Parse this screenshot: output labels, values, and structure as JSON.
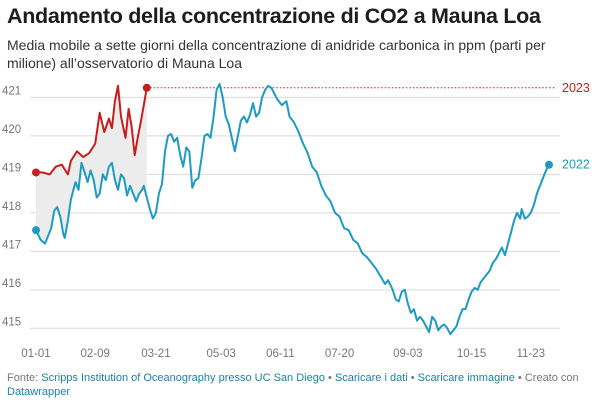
{
  "title": "Andamento della concentrazione di CO2 a Mauna Loa",
  "subtitle": "Media mobile a sette giorni della concentrazione di anidride carbonica in ppm (parti per milione) all’osservatorio di Mauna Loa",
  "footer": {
    "prefix": "Fonte: ",
    "source": "Scripps Institution of Oceanography presso UC San Diego",
    "sep1": " • ",
    "download_data": "Scaricare i dati",
    "sep2": " • ",
    "download_image": "Scaricare immagine",
    "sep3": " • Creato con ",
    "tool": "Datawrapper"
  },
  "colors": {
    "series_2023": "#c71e1d",
    "series_2022": "#1d9bc0",
    "area_fill": "#ececec",
    "grid": "#d9d9d9"
  },
  "chart_data": {
    "type": "line",
    "x_unit": "day of year (1 = 1 Jan)",
    "ylim": [
      414.8,
      421.4
    ],
    "y_ticks": [
      415,
      416,
      417,
      418,
      419,
      420,
      421
    ],
    "x_ticks": [
      {
        "day": 1,
        "label": "01-01"
      },
      {
        "day": 40,
        "label": "02-09"
      },
      {
        "day": 80,
        "label": "03-21"
      },
      {
        "day": 123,
        "label": "05-03"
      },
      {
        "day": 162,
        "label": "06-11"
      },
      {
        "day": 201,
        "label": "07-20"
      },
      {
        "day": 246,
        "label": "09-03"
      },
      {
        "day": 288,
        "label": "10-15"
      },
      {
        "day": 327,
        "label": "11-23"
      }
    ],
    "grid": true,
    "series": [
      {
        "name": "2023",
        "color": "#c71e1d",
        "reference_line": 421.25,
        "points": [
          [
            1,
            419.05
          ],
          [
            5,
            419.05
          ],
          [
            10,
            419.0
          ],
          [
            14,
            419.2
          ],
          [
            18,
            419.25
          ],
          [
            22,
            419.0
          ],
          [
            24,
            419.35
          ],
          [
            28,
            419.6
          ],
          [
            32,
            419.45
          ],
          [
            36,
            419.55
          ],
          [
            40,
            419.8
          ],
          [
            43,
            420.6
          ],
          [
            46,
            420.1
          ],
          [
            49,
            420.45
          ],
          [
            51,
            420.2
          ],
          [
            53,
            420.9
          ],
          [
            55,
            421.3
          ],
          [
            57,
            420.5
          ],
          [
            60,
            419.95
          ],
          [
            62,
            420.7
          ],
          [
            64,
            420.25
          ],
          [
            66,
            419.5
          ],
          [
            68,
            419.95
          ],
          [
            70,
            420.35
          ],
          [
            72,
            420.8
          ],
          [
            74,
            421.25
          ]
        ]
      },
      {
        "name": "2022",
        "color": "#1d9bc0",
        "points": [
          [
            1,
            417.55
          ],
          [
            4,
            417.3
          ],
          [
            7,
            417.2
          ],
          [
            9,
            417.4
          ],
          [
            11,
            417.6
          ],
          [
            13,
            418.05
          ],
          [
            15,
            418.15
          ],
          [
            17,
            417.9
          ],
          [
            19,
            417.45
          ],
          [
            20,
            417.35
          ],
          [
            22,
            417.8
          ],
          [
            24,
            418.35
          ],
          [
            27,
            418.8
          ],
          [
            29,
            418.6
          ],
          [
            31,
            419.3
          ],
          [
            33,
            419.05
          ],
          [
            35,
            418.8
          ],
          [
            37,
            419.1
          ],
          [
            39,
            418.85
          ],
          [
            41,
            418.4
          ],
          [
            43,
            418.5
          ],
          [
            45,
            419.0
          ],
          [
            47,
            418.85
          ],
          [
            49,
            419.2
          ],
          [
            51,
            419.3
          ],
          [
            53,
            418.85
          ],
          [
            55,
            418.6
          ],
          [
            57,
            419.0
          ],
          [
            59,
            418.9
          ],
          [
            61,
            418.45
          ],
          [
            63,
            418.7
          ],
          [
            65,
            418.5
          ],
          [
            67,
            418.3
          ],
          [
            69,
            418.5
          ],
          [
            71,
            418.6
          ],
          [
            72,
            418.7
          ],
          [
            74,
            418.4
          ],
          [
            76,
            418.1
          ],
          [
            78,
            417.85
          ],
          [
            80,
            418.0
          ],
          [
            82,
            418.5
          ],
          [
            84,
            418.75
          ],
          [
            86,
            419.6
          ],
          [
            88,
            420.0
          ],
          [
            90,
            420.05
          ],
          [
            92,
            419.85
          ],
          [
            94,
            419.95
          ],
          [
            96,
            419.5
          ],
          [
            98,
            419.2
          ],
          [
            100,
            419.7
          ],
          [
            102,
            419.6
          ],
          [
            104,
            418.65
          ],
          [
            106,
            418.85
          ],
          [
            108,
            418.9
          ],
          [
            110,
            419.4
          ],
          [
            112,
            420.0
          ],
          [
            114,
            420.05
          ],
          [
            116,
            419.95
          ],
          [
            118,
            420.5
          ],
          [
            120,
            421.2
          ],
          [
            122,
            421.35
          ],
          [
            124,
            421.0
          ],
          [
            126,
            420.5
          ],
          [
            128,
            420.3
          ],
          [
            130,
            419.95
          ],
          [
            132,
            419.6
          ],
          [
            134,
            420.0
          ],
          [
            136,
            420.4
          ],
          [
            138,
            420.5
          ],
          [
            140,
            420.35
          ],
          [
            142,
            420.55
          ],
          [
            144,
            420.85
          ],
          [
            146,
            420.5
          ],
          [
            148,
            420.6
          ],
          [
            150,
            421.0
          ],
          [
            152,
            421.2
          ],
          [
            154,
            421.3
          ],
          [
            156,
            421.25
          ],
          [
            158,
            421.1
          ],
          [
            160,
            420.95
          ],
          [
            163,
            420.8
          ],
          [
            166,
            420.9
          ],
          [
            168,
            420.5
          ],
          [
            171,
            420.35
          ],
          [
            174,
            420.1
          ],
          [
            177,
            419.8
          ],
          [
            180,
            419.55
          ],
          [
            183,
            419.2
          ],
          [
            186,
            419.05
          ],
          [
            189,
            418.7
          ],
          [
            192,
            418.45
          ],
          [
            195,
            418.3
          ],
          [
            198,
            418.0
          ],
          [
            201,
            417.9
          ],
          [
            204,
            417.6
          ],
          [
            207,
            417.55
          ],
          [
            210,
            417.3
          ],
          [
            213,
            417.2
          ],
          [
            216,
            416.95
          ],
          [
            219,
            416.85
          ],
          [
            222,
            416.7
          ],
          [
            225,
            416.55
          ],
          [
            228,
            416.35
          ],
          [
            231,
            416.15
          ],
          [
            233,
            416.25
          ],
          [
            236,
            416.0
          ],
          [
            238,
            415.75
          ],
          [
            240,
            415.7
          ],
          [
            242,
            415.95
          ],
          [
            244,
            416.0
          ],
          [
            246,
            415.65
          ],
          [
            248,
            415.4
          ],
          [
            250,
            415.5
          ],
          [
            252,
            415.2
          ],
          [
            254,
            415.3
          ],
          [
            256,
            415.2
          ],
          [
            258,
            415.05
          ],
          [
            260,
            414.9
          ],
          [
            262,
            415.3
          ],
          [
            264,
            415.2
          ],
          [
            266,
            414.95
          ],
          [
            268,
            415.05
          ],
          [
            270,
            415.1
          ],
          [
            272,
            415.0
          ],
          [
            274,
            414.85
          ],
          [
            276,
            414.95
          ],
          [
            278,
            415.05
          ],
          [
            280,
            415.3
          ],
          [
            282,
            415.5
          ],
          [
            284,
            415.5
          ],
          [
            286,
            415.75
          ],
          [
            288,
            415.95
          ],
          [
            290,
            416.05
          ],
          [
            292,
            416.0
          ],
          [
            294,
            416.2
          ],
          [
            296,
            416.3
          ],
          [
            298,
            416.4
          ],
          [
            300,
            416.5
          ],
          [
            302,
            416.7
          ],
          [
            304,
            416.8
          ],
          [
            306,
            416.95
          ],
          [
            308,
            417.1
          ],
          [
            310,
            416.9
          ],
          [
            312,
            417.2
          ],
          [
            314,
            417.5
          ],
          [
            316,
            417.8
          ],
          [
            318,
            418.0
          ],
          [
            320,
            417.85
          ],
          [
            321,
            418.1
          ],
          [
            323,
            417.85
          ],
          [
            325,
            417.9
          ],
          [
            327,
            418.0
          ],
          [
            329,
            418.2
          ],
          [
            331,
            418.5
          ],
          [
            333,
            418.7
          ],
          [
            335,
            418.9
          ],
          [
            337,
            419.1
          ],
          [
            339,
            419.25
          ]
        ]
      }
    ]
  }
}
